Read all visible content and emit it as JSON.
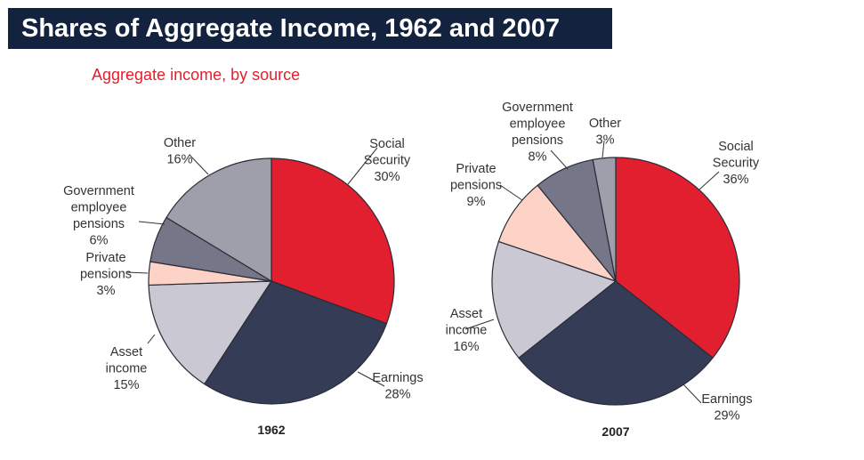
{
  "header": {
    "title": "Shares of Aggregate Income, 1962 and 2007",
    "subtitle": "Aggregate income, by source"
  },
  "colors": {
    "banner": "#13223f",
    "subtitle": "#e21f2f",
    "social_security": "#e21f2f",
    "earnings": "#353d56",
    "asset_income": "#c9c8d3",
    "private_pensions": "#fcd3c6",
    "government_employee_pensions": "#767689",
    "other": "#9f9fab"
  },
  "chart_data": [
    {
      "type": "pie",
      "title": "1962",
      "slices": [
        {
          "label": [
            "Social",
            "Security",
            "30%"
          ],
          "value": 30,
          "color": "#e21f2f"
        },
        {
          "label": [
            "Earnings",
            "28%"
          ],
          "value": 28,
          "color": "#353d56"
        },
        {
          "label": [
            "Asset",
            "income",
            "15%"
          ],
          "value": 15,
          "color": "#c9c8d3"
        },
        {
          "label": [
            "Private",
            "pensions",
            "3%"
          ],
          "value": 3,
          "color": "#fcd3c6"
        },
        {
          "label": [
            "Government",
            "employee",
            "pensions",
            "6%"
          ],
          "value": 6,
          "color": "#767689"
        },
        {
          "label": [
            "Other",
            "16%"
          ],
          "value": 16,
          "color": "#9f9fab"
        }
      ]
    },
    {
      "type": "pie",
      "title": "2007",
      "slices": [
        {
          "label": [
            "Social",
            "Security",
            "36%"
          ],
          "value": 36,
          "color": "#e21f2f"
        },
        {
          "label": [
            "Earnings",
            "29%"
          ],
          "value": 29,
          "color": "#353d56"
        },
        {
          "label": [
            "Asset",
            "income",
            "16%"
          ],
          "value": 16,
          "color": "#c9c8d3"
        },
        {
          "label": [
            "Private",
            "pensions",
            "9%"
          ],
          "value": 9,
          "color": "#fcd3c6"
        },
        {
          "label": [
            "Government",
            "employee",
            "pensions",
            "8%"
          ],
          "value": 8,
          "color": "#767689"
        },
        {
          "label": [
            "Other",
            "3%"
          ],
          "value": 3,
          "color": "#9f9fab"
        }
      ]
    }
  ]
}
